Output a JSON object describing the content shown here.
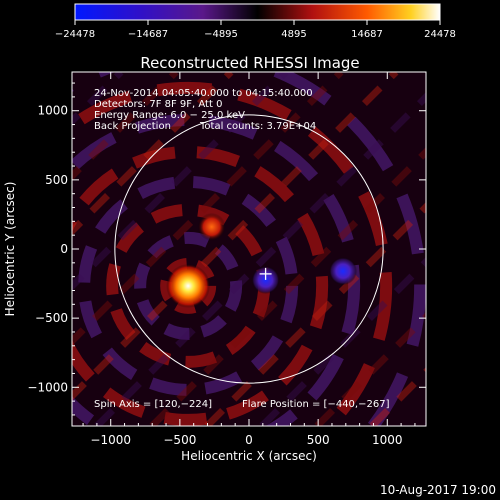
{
  "chart_data": {
    "type": "heatmap",
    "title": "Reconstructed RHESSI Image",
    "xlabel": "Heliocentric X (arcsec)",
    "ylabel": "Heliocentric Y (arcsec)",
    "xlim": [
      -1280,
      1280
    ],
    "ylim": [
      -1280,
      1280
    ],
    "xticks": [
      -1000,
      -500,
      0,
      500,
      1000
    ],
    "yticks": [
      -1000,
      -500,
      0,
      500,
      1000
    ],
    "xtick_labels": [
      "−1000",
      "−500",
      "0",
      "500",
      "1000"
    ],
    "ytick_labels": [
      "−1000",
      "−500",
      "0",
      "500",
      "1000"
    ],
    "colorbar": {
      "min": -24478,
      "max": 24478,
      "ticks": [
        -24478,
        -14687,
        -4895,
        4895,
        14687,
        24478
      ],
      "tick_labels": [
        "−24478",
        "−14687",
        "−4895",
        "4895",
        "14687",
        "24478"
      ]
    },
    "annotations": [
      "24-Nov-2014 04:05:40.000 to 04:15:40.000",
      "Detectors: 7F 8F 9F, Att 0",
      "Energy Range: 6.0 − 25.0 keV",
      "Back Projection",
      "Total counts: 3.79E+04"
    ],
    "spin_axis_label": "Spin Axis = [120,−224]",
    "flare_position_label": "Flare Position = [−440,−267]",
    "solar_limb_radius_arcsec": 970,
    "sources": [
      {
        "x": -440,
        "y": -267,
        "intensity": 24478
      },
      {
        "x": 120,
        "y": -224,
        "intensity": -14687
      },
      {
        "x": 680,
        "y": -160,
        "intensity": -14687
      },
      {
        "x": -270,
        "y": 160,
        "intensity": 9000
      }
    ],
    "crosshair": {
      "x": 120,
      "y": -180
    },
    "timestamp": "10-Aug-2017 19:00"
  }
}
